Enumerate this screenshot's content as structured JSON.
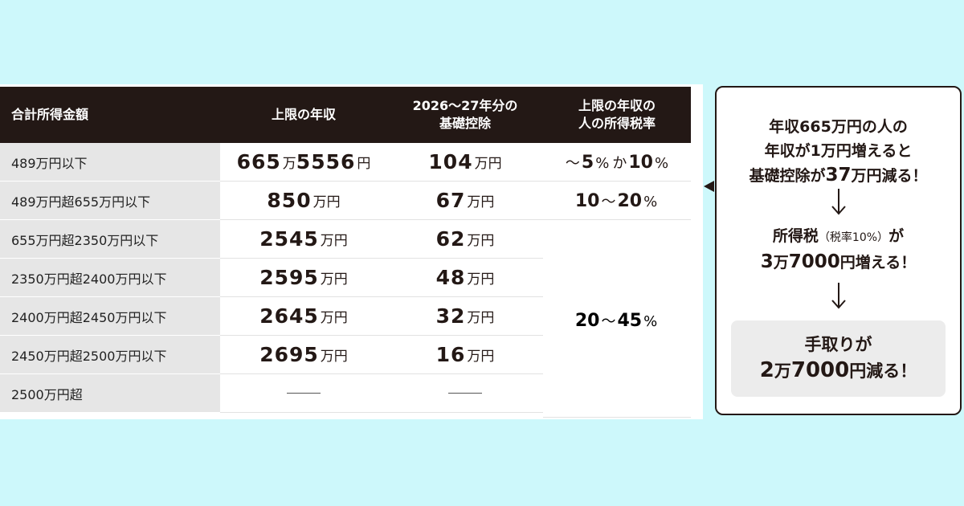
{
  "table": {
    "headers": [
      "合計所得金額",
      "上限の年収",
      "2026～27年分の\n基礎控除",
      "上限の年収の\n人の所得税率"
    ],
    "rows": [
      {
        "income": "489万円以下",
        "cap_num": "665",
        "cap_mid": "万",
        "cap_num2": "5556",
        "cap_unit": "円",
        "deduct_num": "104",
        "deduct_unit": "万円"
      },
      {
        "income": "489万円超655万円以下",
        "cap_num": "850",
        "cap_unit": "万円",
        "deduct_num": "67",
        "deduct_unit": "万円"
      },
      {
        "income": "655万円超2350万円以下",
        "cap_num": "2545",
        "cap_unit": "万円",
        "deduct_num": "62",
        "deduct_unit": "万円"
      },
      {
        "income": "2350万円超2400万円以下",
        "cap_num": "2595",
        "cap_unit": "万円",
        "deduct_num": "48",
        "deduct_unit": "万円"
      },
      {
        "income": "2400万円超2450万円以下",
        "cap_num": "2645",
        "cap_unit": "万円",
        "deduct_num": "32",
        "deduct_unit": "万円"
      },
      {
        "income": "2450万円超2500万円以下",
        "cap_num": "2695",
        "cap_unit": "万円",
        "deduct_num": "16",
        "deduct_unit": "万円"
      },
      {
        "income": "2500万円超",
        "cap_num": "",
        "cap_unit": "",
        "deduct_num": "",
        "deduct_unit": ""
      }
    ],
    "rates": {
      "r1": {
        "pre": "～",
        "a": "5",
        "a_sym": "%",
        "mid": "か",
        "b": "10",
        "b_sym": "%"
      },
      "r2": {
        "a": "10",
        "mid": "～",
        "b": "20",
        "b_sym": "%"
      },
      "r3": {
        "a": "20",
        "mid": "～",
        "b": "45",
        "b_sym": "%"
      }
    }
  },
  "callout": {
    "line1": "年収665万円の人の",
    "line2": "年収が1万円増えると",
    "line3_a": "基礎控除が",
    "line3_em": "37",
    "line3_b": "万円減る！",
    "line4_a": "所得税",
    "line4_small": "（税率10%）",
    "line4_b": "が",
    "line5_em1": "3",
    "line5_a": "万",
    "line5_em2": "7000",
    "line5_b": "円増える！",
    "result_line1": "手取りが",
    "result_em1": "2",
    "result_a": "万",
    "result_em2": "7000",
    "result_b": "円減る！"
  },
  "colors": {
    "background": "#cdf8fb",
    "header": "#231815",
    "label_cell": "#e6e6e6",
    "result_box": "#ececec"
  }
}
